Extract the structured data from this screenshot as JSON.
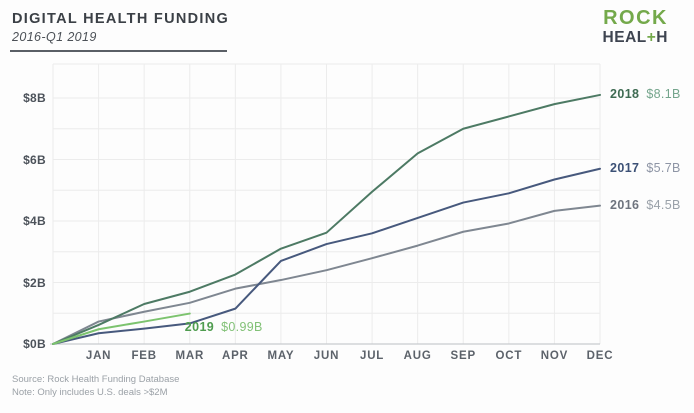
{
  "header": {
    "title": "DIGITAL HEALTH FUNDING",
    "subtitle": "2016-Q1 2019"
  },
  "logo": {
    "top": "ROCK",
    "bottom_pre": "HEAL",
    "bottom_plus": "+",
    "bottom_post": "H",
    "green": "#74a94b",
    "dark": "#3e4450"
  },
  "footer": {
    "source": "Source: Rock Health Funding Database",
    "note": "Note: Only includes U.S. deals >$2M"
  },
  "chart_data": {
    "type": "line",
    "title": "Digital health funding, cumulative by month (USD billions)",
    "unit": "$B",
    "x_categories": [
      "JAN",
      "FEB",
      "MAR",
      "APR",
      "MAY",
      "JUN",
      "JUL",
      "AUG",
      "SEP",
      "OCT",
      "NOV",
      "DEC"
    ],
    "y_ticks": [
      {
        "label": "$0B",
        "value": 0
      },
      {
        "label": "$2B",
        "value": 2
      },
      {
        "label": "$4B",
        "value": 4
      },
      {
        "label": "$6B",
        "value": 6
      },
      {
        "label": "$8B",
        "value": 8
      }
    ],
    "ylim": [
      0,
      9.1
    ],
    "grid": true,
    "gridline_step": 1,
    "legend_position": "line-end-labels",
    "values_start_at_zero_origin": true,
    "series": [
      {
        "name": "2016",
        "end_label": "$4.5B",
        "line_color": "#7f8791",
        "name_color": "#6e747e",
        "value_color": "#9aa1a9",
        "values": [
          0,
          0.73,
          1.05,
          1.34,
          1.8,
          2.08,
          2.4,
          2.79,
          3.2,
          3.65,
          3.92,
          4.33,
          4.5
        ]
      },
      {
        "name": "2017",
        "end_label": "$5.7B",
        "line_color": "#47597d",
        "name_color": "#3c5176",
        "value_color": "#8e95a5",
        "values": [
          0,
          0.35,
          0.5,
          0.67,
          1.15,
          2.7,
          3.25,
          3.6,
          4.1,
          4.6,
          4.9,
          5.35,
          5.7
        ]
      },
      {
        "name": "2018",
        "end_label": "$8.1B",
        "line_color": "#4d7a64",
        "name_color": "#3e6b52",
        "value_color": "#74a58c",
        "values": [
          0,
          0.62,
          1.3,
          1.7,
          2.26,
          3.1,
          3.62,
          4.95,
          6.2,
          7.0,
          7.4,
          7.8,
          8.1
        ]
      },
      {
        "name": "2019",
        "end_label": "$0.99B",
        "line_color": "#7cc36e",
        "name_color": "#4f9c4f",
        "value_color": "#82c177",
        "values": [
          0,
          0.48,
          0.73,
          0.99
        ]
      }
    ]
  }
}
